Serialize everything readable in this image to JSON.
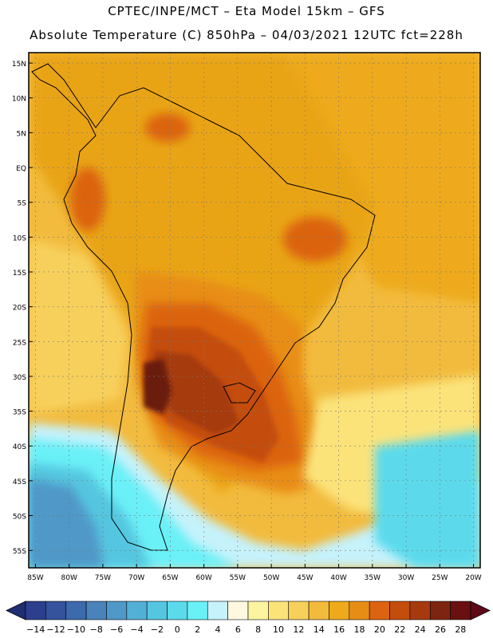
{
  "header": {
    "line1": "CPTEC/INPE/MCT –  Eta Model 15km – GFS",
    "line2": "Absolute Temperature (C) 850hPa – 04/03/2021 12UTC fct=228h"
  },
  "map": {
    "lon_range": [
      -86,
      -19
    ],
    "lat_range": [
      -57.5,
      16.5
    ],
    "lat_labels": [
      "15N",
      "10N",
      "5N",
      "EQ",
      "5S",
      "10S",
      "15S",
      "20S",
      "25S",
      "30S",
      "35S",
      "40S",
      "45S",
      "50S",
      "55S"
    ],
    "lat_values": [
      15,
      10,
      5,
      0,
      -5,
      -10,
      -15,
      -20,
      -25,
      -30,
      -35,
      -40,
      -45,
      -50,
      -55
    ],
    "lon_labels": [
      "85W",
      "80W",
      "75W",
      "70W",
      "65W",
      "60W",
      "55W",
      "50W",
      "45W",
      "40W",
      "35W",
      "30W",
      "25W",
      "20W"
    ],
    "lon_values": [
      -85,
      -80,
      -75,
      -70,
      -65,
      -60,
      -55,
      -50,
      -45,
      -40,
      -35,
      -30,
      -25,
      -20
    ]
  },
  "colorbar": {
    "labels": [
      "-14",
      "-12",
      "-10",
      "-8",
      "-6",
      "-4",
      "-2",
      "0",
      "2",
      "4",
      "6",
      "8",
      "10",
      "12",
      "14",
      "16",
      "18",
      "20",
      "22",
      "24",
      "26",
      "28"
    ],
    "colors": [
      "#2c3e8c",
      "#34539c",
      "#3c6aac",
      "#4a82ba",
      "#4f98c8",
      "#52afd6",
      "#55c6e0",
      "#5bdaec",
      "#6af0f7",
      "#c6f2fb",
      "#fff8e0",
      "#fdf4a2",
      "#fbe37a",
      "#f7d05c",
      "#f2bb3e",
      "#eeaa1c",
      "#e88d14",
      "#dc6410",
      "#c44d0c",
      "#a63a0e",
      "#7e2512",
      "#6a1010"
    ],
    "low_color": "#1e2e70",
    "high_color": "#5e0a16"
  },
  "regions": [
    {
      "name": "cold-south-atlantic",
      "color": "#c6f2fb"
    },
    {
      "name": "warm-argentina-core",
      "color": "#7a3a20"
    },
    {
      "name": "amazon-basin",
      "color": "#eeaa1c"
    }
  ]
}
